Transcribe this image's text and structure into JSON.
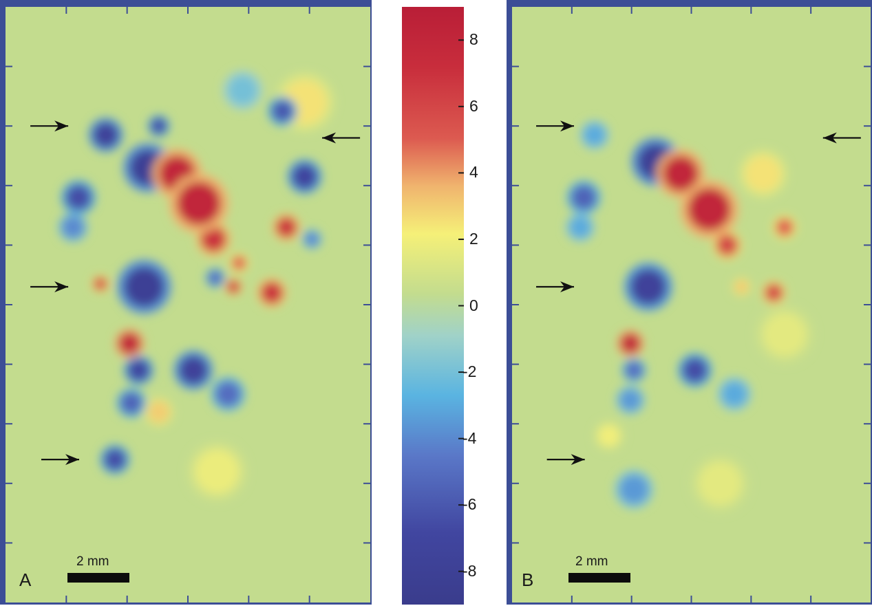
{
  "chart_data": {
    "type": "heatmap",
    "colorbar": {
      "min": -9,
      "max": 9,
      "ticks": [
        8,
        6,
        4,
        2,
        0,
        -2,
        -4,
        -6,
        -8
      ],
      "tick_labels": [
        "8",
        "6",
        "4",
        "2",
        "0",
        "-2",
        "-4",
        "-6",
        "-8"
      ]
    },
    "panels": [
      {
        "label": "A",
        "scale_bar_label": "2 mm",
        "arrows": [
          {
            "side": "left",
            "pos": [
              0.12,
              0.2
            ]
          },
          {
            "side": "right",
            "pos": [
              0.92,
              0.22
            ]
          },
          {
            "side": "left",
            "pos": [
              0.12,
              0.47
            ]
          },
          {
            "side": "left",
            "pos": [
              0.15,
              0.76
            ]
          }
        ],
        "blobs": [
          {
            "cx": 0.275,
            "cy": 0.215,
            "r": 0.035,
            "v": -7.5
          },
          {
            "cx": 0.42,
            "cy": 0.2,
            "r": 0.022,
            "v": -6.5
          },
          {
            "cx": 0.76,
            "cy": 0.175,
            "r": 0.03,
            "v": -6
          },
          {
            "cx": 0.39,
            "cy": 0.27,
            "r": 0.05,
            "v": -8
          },
          {
            "cx": 0.82,
            "cy": 0.285,
            "r": 0.035,
            "v": -7
          },
          {
            "cx": 0.2,
            "cy": 0.32,
            "r": 0.035,
            "v": -6.5
          },
          {
            "cx": 0.185,
            "cy": 0.37,
            "r": 0.03,
            "v": -4
          },
          {
            "cx": 0.47,
            "cy": 0.28,
            "r": 0.05,
            "v": 8
          },
          {
            "cx": 0.53,
            "cy": 0.33,
            "r": 0.06,
            "v": 8
          },
          {
            "cx": 0.57,
            "cy": 0.39,
            "r": 0.035,
            "v": 7
          },
          {
            "cx": 0.64,
            "cy": 0.43,
            "r": 0.02,
            "v": 5
          },
          {
            "cx": 0.77,
            "cy": 0.37,
            "r": 0.028,
            "v": 7
          },
          {
            "cx": 0.84,
            "cy": 0.39,
            "r": 0.02,
            "v": -4
          },
          {
            "cx": 0.38,
            "cy": 0.47,
            "r": 0.055,
            "v": -8
          },
          {
            "cx": 0.26,
            "cy": 0.465,
            "r": 0.018,
            "v": 6
          },
          {
            "cx": 0.575,
            "cy": 0.455,
            "r": 0.02,
            "v": -5
          },
          {
            "cx": 0.625,
            "cy": 0.47,
            "r": 0.018,
            "v": 6.5
          },
          {
            "cx": 0.73,
            "cy": 0.48,
            "r": 0.03,
            "v": 7
          },
          {
            "cx": 0.34,
            "cy": 0.565,
            "r": 0.03,
            "v": 8
          },
          {
            "cx": 0.365,
            "cy": 0.61,
            "r": 0.03,
            "v": -7
          },
          {
            "cx": 0.345,
            "cy": 0.665,
            "r": 0.03,
            "v": -5.5
          },
          {
            "cx": 0.515,
            "cy": 0.61,
            "r": 0.04,
            "v": -7.5
          },
          {
            "cx": 0.61,
            "cy": 0.65,
            "r": 0.035,
            "v": -5
          },
          {
            "cx": 0.3,
            "cy": 0.76,
            "r": 0.03,
            "v": -6.5
          },
          {
            "cx": 0.42,
            "cy": 0.68,
            "r": 0.03,
            "v": 3
          },
          {
            "cx": 0.58,
            "cy": 0.78,
            "r": 0.06,
            "v": 1.8
          },
          {
            "cx": 0.82,
            "cy": 0.16,
            "r": 0.06,
            "v": 2.5
          },
          {
            "cx": 0.65,
            "cy": 0.14,
            "r": 0.04,
            "v": -2
          }
        ]
      },
      {
        "label": "B",
        "scale_bar_label": "2 mm",
        "arrows": [
          {
            "side": "left",
            "pos": [
              0.12,
              0.2
            ]
          },
          {
            "side": "right",
            "pos": [
              0.92,
              0.22
            ]
          },
          {
            "side": "left",
            "pos": [
              0.12,
              0.47
            ]
          },
          {
            "side": "left",
            "pos": [
              0.15,
              0.76
            ]
          }
        ],
        "blobs": [
          {
            "cx": 0.23,
            "cy": 0.215,
            "r": 0.03,
            "v": -3
          },
          {
            "cx": 0.4,
            "cy": 0.26,
            "r": 0.05,
            "v": -8
          },
          {
            "cx": 0.2,
            "cy": 0.32,
            "r": 0.035,
            "v": -5.5
          },
          {
            "cx": 0.19,
            "cy": 0.37,
            "r": 0.03,
            "v": -3
          },
          {
            "cx": 0.47,
            "cy": 0.28,
            "r": 0.05,
            "v": 8
          },
          {
            "cx": 0.55,
            "cy": 0.34,
            "r": 0.06,
            "v": 8
          },
          {
            "cx": 0.6,
            "cy": 0.4,
            "r": 0.03,
            "v": 6
          },
          {
            "cx": 0.76,
            "cy": 0.37,
            "r": 0.025,
            "v": 5
          },
          {
            "cx": 0.7,
            "cy": 0.28,
            "r": 0.05,
            "v": 2.5
          },
          {
            "cx": 0.38,
            "cy": 0.47,
            "r": 0.05,
            "v": -7.5
          },
          {
            "cx": 0.64,
            "cy": 0.47,
            "r": 0.02,
            "v": 3
          },
          {
            "cx": 0.73,
            "cy": 0.48,
            "r": 0.025,
            "v": 6
          },
          {
            "cx": 0.33,
            "cy": 0.565,
            "r": 0.028,
            "v": 8
          },
          {
            "cx": 0.34,
            "cy": 0.61,
            "r": 0.025,
            "v": -5
          },
          {
            "cx": 0.33,
            "cy": 0.66,
            "r": 0.03,
            "v": -3.5
          },
          {
            "cx": 0.51,
            "cy": 0.61,
            "r": 0.035,
            "v": -6.5
          },
          {
            "cx": 0.62,
            "cy": 0.65,
            "r": 0.035,
            "v": -3
          },
          {
            "cx": 0.34,
            "cy": 0.81,
            "r": 0.04,
            "v": -3.5
          },
          {
            "cx": 0.27,
            "cy": 0.72,
            "r": 0.03,
            "v": 2
          },
          {
            "cx": 0.58,
            "cy": 0.8,
            "r": 0.06,
            "v": 1.5
          },
          {
            "cx": 0.76,
            "cy": 0.55,
            "r": 0.06,
            "v": 1.5
          }
        ]
      }
    ]
  },
  "colors": {
    "background_field": "#c3dc8e",
    "frame": "#3c4e96"
  }
}
